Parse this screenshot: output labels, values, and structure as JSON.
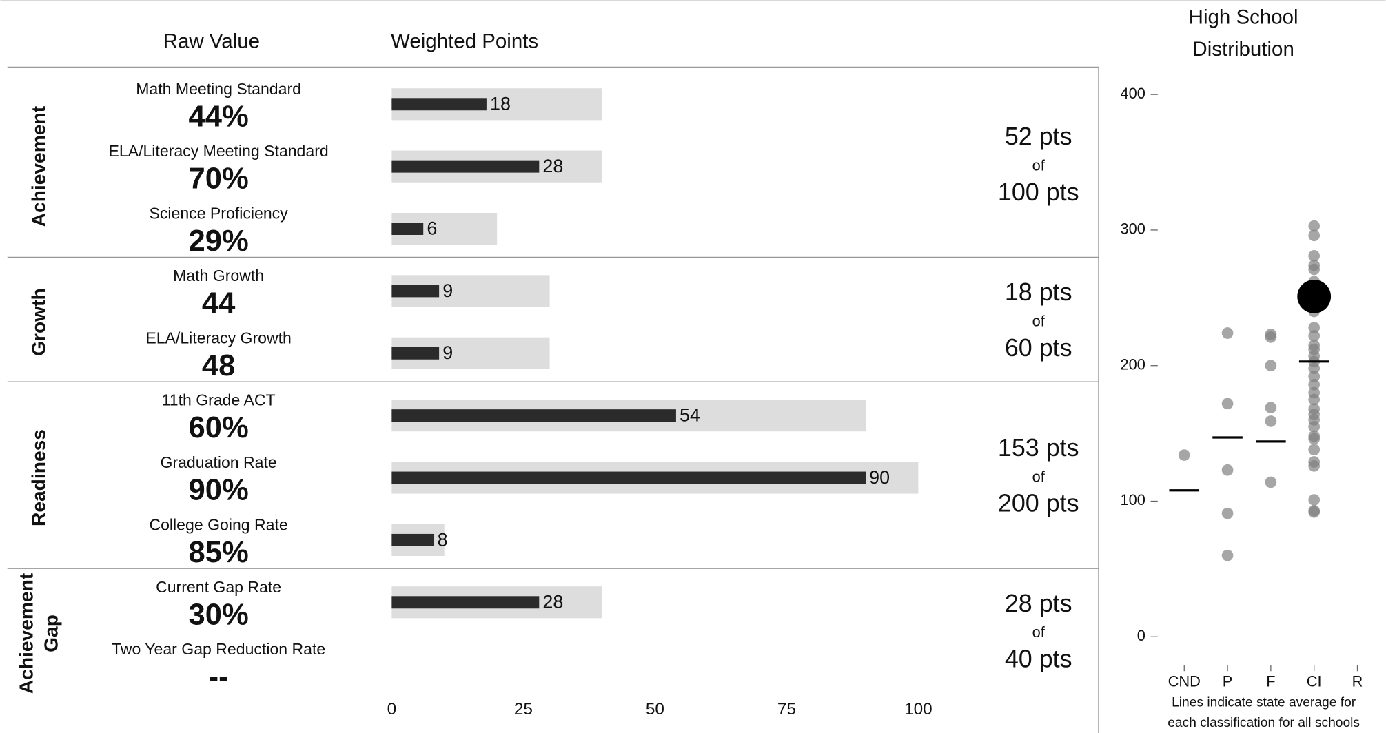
{
  "headers": {
    "raw_value": "Raw Value",
    "weighted_points": "Weighted Points"
  },
  "sections": [
    {
      "name": [
        "Achievement"
      ],
      "total": "52 pts",
      "of": "of",
      "max": "100 pts",
      "measures": [
        {
          "label": "Math Meeting Standard",
          "raw": "44%",
          "points": 18,
          "max_points": 40
        },
        {
          "label": "ELA/Literacy Meeting Standard",
          "raw": "70%",
          "points": 28,
          "max_points": 40
        },
        {
          "label": "Science Proficiency",
          "raw": "29%",
          "points": 6,
          "max_points": 20
        }
      ]
    },
    {
      "name": [
        "Growth"
      ],
      "total": "18 pts",
      "of": "of",
      "max": "60 pts",
      "measures": [
        {
          "label": "Math Growth",
          "raw": "44",
          "points": 9,
          "max_points": 30
        },
        {
          "label": "ELA/Literacy Growth",
          "raw": "48",
          "points": 9,
          "max_points": 30
        }
      ]
    },
    {
      "name": [
        "Readiness"
      ],
      "total": "153 pts",
      "of": "of",
      "max": "200 pts",
      "measures": [
        {
          "label": "11th Grade ACT",
          "raw": "60%",
          "points": 54,
          "max_points": 90
        },
        {
          "label": "Graduation Rate",
          "raw": "90%",
          "points": 90,
          "max_points": 100
        },
        {
          "label": "College Going Rate",
          "raw": "85%",
          "points": 8,
          "max_points": 10
        }
      ]
    },
    {
      "name": [
        "Achievement",
        "Gap"
      ],
      "total": "28 pts",
      "of": "of",
      "max": "40 pts",
      "measures": [
        {
          "label": "Current Gap Rate",
          "raw": "30%",
          "points": 28,
          "max_points": 40
        },
        {
          "label": "Two Year Gap Reduction Rate",
          "raw": "--",
          "points": null,
          "max_points": null
        }
      ]
    }
  ],
  "points_axis": {
    "xlim": [
      0,
      100
    ],
    "xticks": [
      0,
      25,
      50,
      75,
      100
    ],
    "bar_color": "#2b2b2b",
    "track_color": "#dddddd"
  },
  "chart_data": {
    "type": "scatter",
    "title": [
      "High School",
      "Distribution"
    ],
    "categories": [
      "CND",
      "P",
      "F",
      "CI",
      "R"
    ],
    "values": [
      [
        134
      ],
      [
        224,
        172,
        123,
        91,
        60
      ],
      [
        223,
        221,
        200,
        169,
        159,
        114
      ],
      [
        303,
        296,
        281,
        274,
        271,
        262,
        252,
        240,
        228,
        222,
        215,
        212,
        207,
        203,
        198,
        192,
        186,
        180,
        175,
        168,
        164,
        160,
        155,
        148,
        146,
        138,
        129,
        126,
        101,
        93,
        92
      ],
      []
    ],
    "averages": [
      108,
      147,
      144,
      203,
      null
    ],
    "highlight": {
      "category": 3,
      "value": 251
    },
    "ylim": [
      0,
      400
    ],
    "yticks": [
      0,
      100,
      200,
      300,
      400
    ],
    "point_color": "#808080",
    "caption": [
      "Lines indicate state average for",
      "each classification for all schools"
    ]
  }
}
